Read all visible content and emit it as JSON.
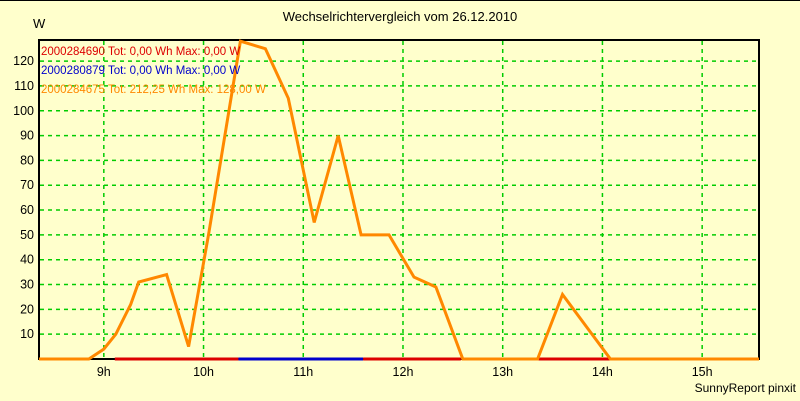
{
  "page": {
    "footer_credit": "SunnyReport pinxit"
  },
  "chart_data": {
    "type": "line",
    "title": "Wechselrichtervergleich vom 26.12.2010",
    "y_unit_label": "W",
    "xlabel": "",
    "ylabel": "W",
    "xlim": [
      8.35,
      15.57
    ],
    "ylim": [
      0,
      128.5
    ],
    "grid": true,
    "legend_position": "top-left-inside",
    "x_ticks": [
      {
        "value": 9,
        "label": "9h"
      },
      {
        "value": 10,
        "label": "10h"
      },
      {
        "value": 11,
        "label": "11h"
      },
      {
        "value": 12,
        "label": "12h"
      },
      {
        "value": 13,
        "label": "13h"
      },
      {
        "value": 14,
        "label": "14h"
      },
      {
        "value": 15,
        "label": "15h"
      }
    ],
    "y_ticks": [
      {
        "value": 10,
        "label": "10"
      },
      {
        "value": 20,
        "label": "20"
      },
      {
        "value": 30,
        "label": "30"
      },
      {
        "value": 40,
        "label": "40"
      },
      {
        "value": 50,
        "label": "50"
      },
      {
        "value": 60,
        "label": "60"
      },
      {
        "value": 70,
        "label": "70"
      },
      {
        "value": 80,
        "label": "80"
      },
      {
        "value": 90,
        "label": "90"
      },
      {
        "value": 100,
        "label": "100"
      },
      {
        "value": 110,
        "label": "110"
      },
      {
        "value": 120,
        "label": "120"
      }
    ],
    "colors": {
      "background": "#ffffcc",
      "grid": "#00cc00",
      "frame": "#000000",
      "series_red": "#dd0000",
      "series_blue": "#0000cc",
      "series_orange": "#ff8800",
      "text": "#000000"
    },
    "legend": [
      {
        "serial": "2000284690",
        "total_wh": "0,00",
        "max_w": "0,00",
        "color": "#dd0000",
        "label": "2000284690 Tot: 0,00 Wh Max: 0,00 W"
      },
      {
        "serial": "2000280879",
        "total_wh": "0,00",
        "max_w": "0,00",
        "color": "#0000cc",
        "label": "2000280879 Tot: 0,00 Wh Max: 0,00 W"
      },
      {
        "serial": "2000284675",
        "total_wh": "212,25",
        "max_w": "128,00",
        "color": "#ff8800",
        "label": "2000284675 Tot: 212,25 Wh Max: 128,00 W"
      }
    ],
    "series": [
      {
        "name": "2000284675",
        "color": "#ff8800",
        "points": [
          [
            8.35,
            0
          ],
          [
            8.85,
            0
          ],
          [
            9.0,
            4
          ],
          [
            9.12,
            10
          ],
          [
            9.27,
            22
          ],
          [
            9.35,
            31
          ],
          [
            9.63,
            34
          ],
          [
            9.85,
            5
          ],
          [
            10.05,
            50
          ],
          [
            10.37,
            128
          ],
          [
            10.62,
            125
          ],
          [
            10.85,
            105
          ],
          [
            11.11,
            55
          ],
          [
            11.35,
            90
          ],
          [
            11.58,
            50
          ],
          [
            11.86,
            50
          ],
          [
            12.11,
            33
          ],
          [
            12.33,
            29
          ],
          [
            12.6,
            0
          ],
          [
            13.35,
            0
          ],
          [
            13.6,
            26
          ],
          [
            14.08,
            0
          ],
          [
            15.57,
            0
          ]
        ]
      }
    ],
    "zero_baseline_segments": [
      {
        "series": "2000284690",
        "color": "#dd0000",
        "from": 9.11,
        "to": 10.35,
        "value": 0
      },
      {
        "series": "2000280879",
        "color": "#0000cc",
        "from": 10.35,
        "to": 11.6,
        "value": 0
      },
      {
        "series": "2000284690",
        "color": "#dd0000",
        "from": 11.6,
        "to": 12.58,
        "value": 0
      },
      {
        "series": "2000284690",
        "color": "#dd0000",
        "from": 13.34,
        "to": 14.08,
        "value": 0
      }
    ]
  }
}
